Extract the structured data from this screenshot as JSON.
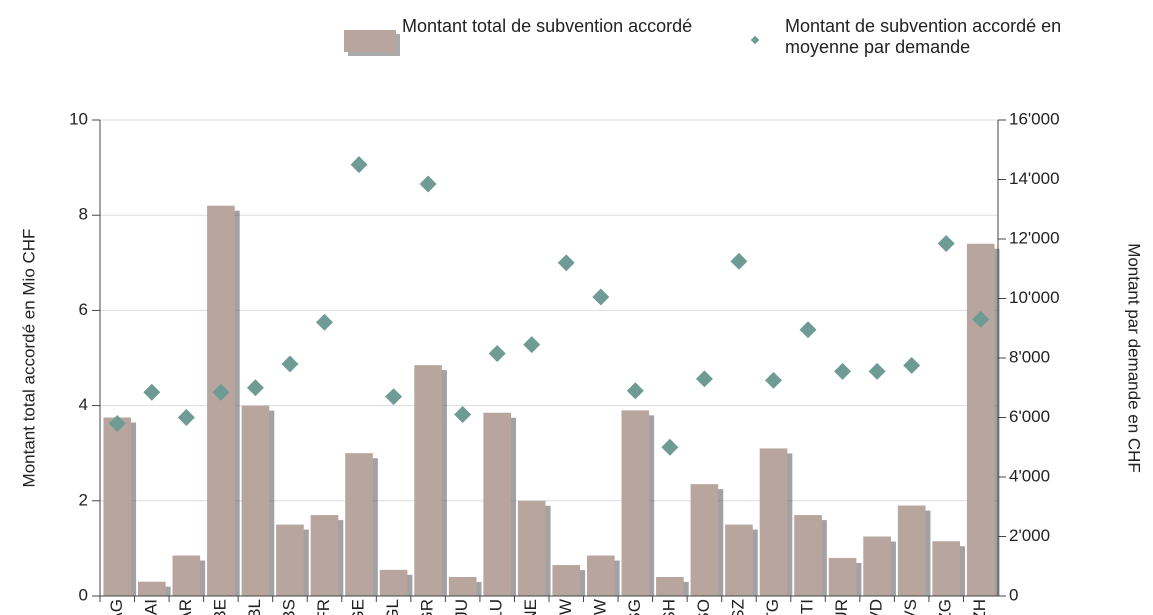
{
  "chart_data": {
    "type": "bar",
    "categories": [
      "AG",
      "AI",
      "AR",
      "BE",
      "BL",
      "BS",
      "FR",
      "GE",
      "GL",
      "GR",
      "JU",
      "LU",
      "NE",
      "NW",
      "OW",
      "SG",
      "SH",
      "SO",
      "SZ",
      "TG",
      "TI",
      "UR",
      "VD",
      "VS",
      "ZG",
      "ZH"
    ],
    "series": [
      {
        "name": "Montant total de subvention accordé",
        "type": "bar",
        "color": "#b7a59e",
        "values": [
          3.75,
          0.3,
          0.85,
          8.2,
          4.0,
          1.5,
          1.7,
          3.0,
          0.55,
          4.85,
          0.4,
          3.85,
          2.0,
          0.65,
          0.85,
          3.9,
          0.4,
          2.35,
          1.5,
          3.1,
          1.7,
          0.8,
          1.25,
          1.9,
          1.15,
          7.4
        ]
      },
      {
        "name": "Montant de subvention accordé en moyenne par demande",
        "type": "scatter",
        "axis": "y2",
        "color": "#6f9b95",
        "values": [
          5800,
          6850,
          6000,
          6850,
          7000,
          7800,
          9200,
          14500,
          6700,
          13850,
          6100,
          8150,
          8450,
          11200,
          10050,
          6900,
          5000,
          7300,
          11250,
          7250,
          8950,
          7550,
          7550,
          7750,
          11850,
          9300
        ]
      }
    ],
    "ylabel": "Montant total accordé en Mio CHF",
    "y2label": "Montant par demande en CHF",
    "ylim": [
      0,
      10
    ],
    "yticks": [
      0,
      2,
      4,
      6,
      8,
      10
    ],
    "y2lim": [
      0,
      16000
    ],
    "y2ticks": [
      {
        "value": 0,
        "label": "0"
      },
      {
        "value": 2000,
        "label": "2'000"
      },
      {
        "value": 4000,
        "label": "4'000"
      },
      {
        "value": 6000,
        "label": "6'000"
      },
      {
        "value": 8000,
        "label": "8'000"
      },
      {
        "value": 10000,
        "label": "10'000"
      },
      {
        "value": 12000,
        "label": "12'000"
      },
      {
        "value": 14000,
        "label": "14'000"
      },
      {
        "value": 16000,
        "label": "16'000"
      }
    ],
    "grid": true
  }
}
